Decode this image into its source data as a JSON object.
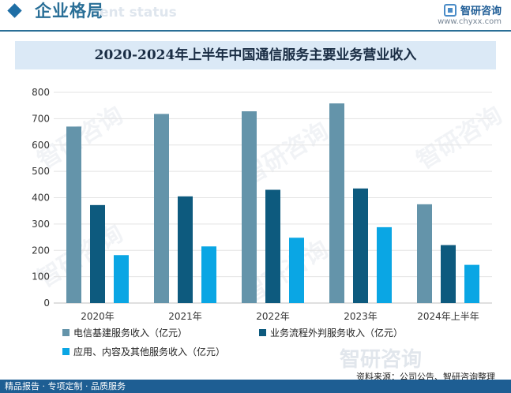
{
  "header": {
    "section_title": "企业格局",
    "section_subtitle": "ent status",
    "brand_name": "智研咨询",
    "brand_url": "www.chyxx.com"
  },
  "colors": {
    "series1": "#6494aa",
    "series2": "#0d5a7e",
    "series3": "#0aa6e4",
    "accent": "#1e5e93"
  },
  "chart_data": {
    "type": "bar",
    "title": "2020-2024年上半年中国通信服务主要业务营业收入",
    "categories": [
      "2020年",
      "2021年",
      "2022年",
      "2023年",
      "2024年上半年"
    ],
    "series": [
      {
        "name": "电信基建服务收入（亿元）",
        "values": [
          670,
          718,
          728,
          758,
          375
        ]
      },
      {
        "name": "业务流程外判服务收入（亿元）",
        "values": [
          372,
          405,
          430,
          435,
          220
        ]
      },
      {
        "name": "应用、内容及其他服务收入（亿元）",
        "values": [
          182,
          215,
          248,
          288,
          145
        ]
      }
    ],
    "yticks": [
      0,
      100,
      200,
      300,
      400,
      500,
      600,
      700,
      800
    ],
    "ylim": [
      0,
      800
    ],
    "grid": true,
    "legend_position": "bottom-left"
  },
  "footer": {
    "left_text": "精品报告 · 专项定制 · 品质服务",
    "source": "资料来源：公司公告、智研咨询整理"
  },
  "watermark": "智研咨询"
}
